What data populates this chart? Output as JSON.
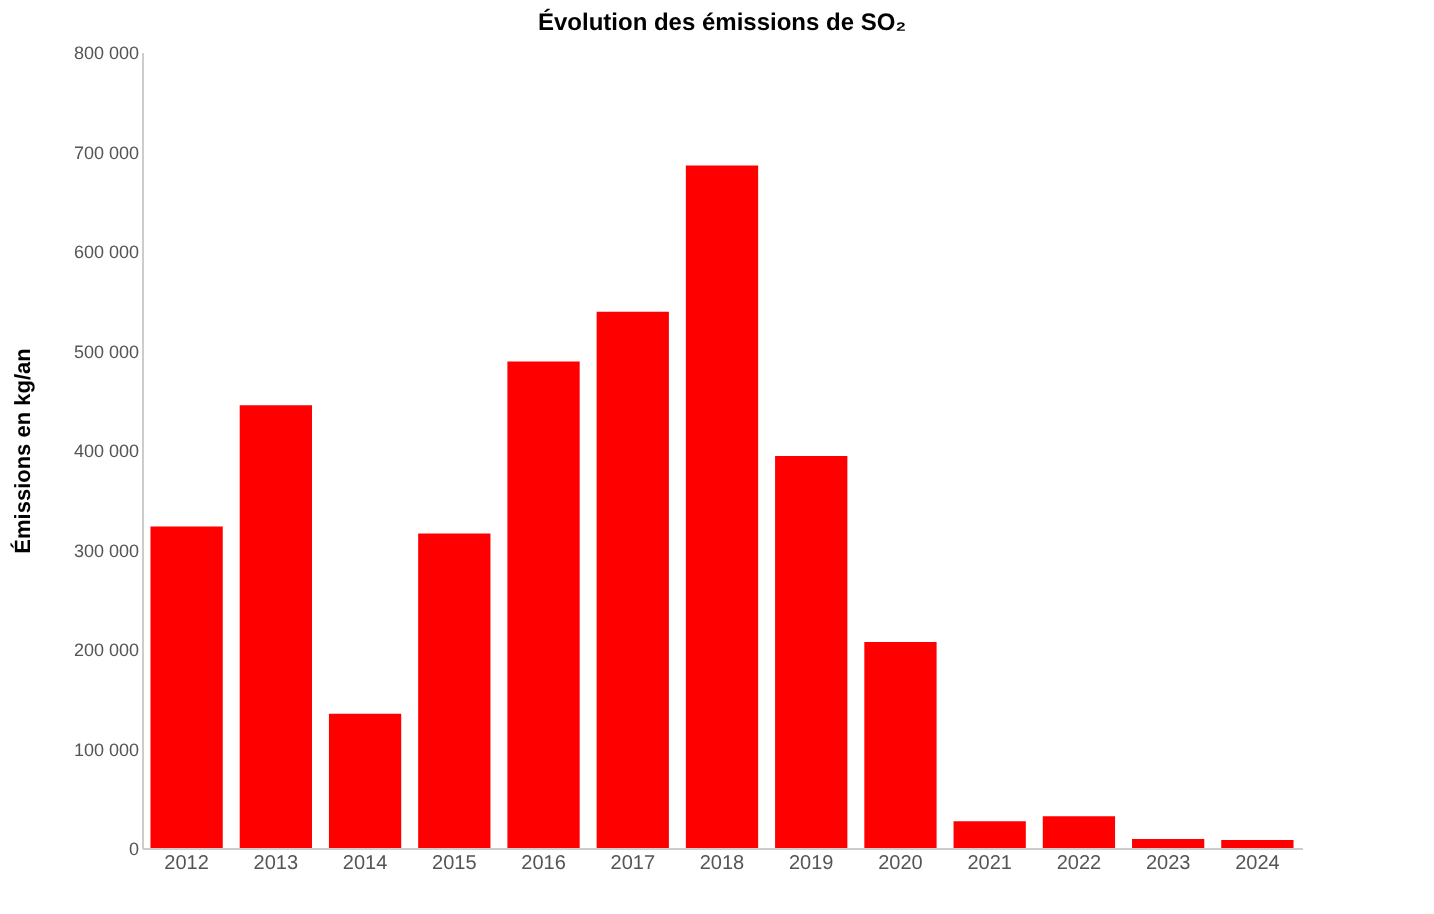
{
  "chart_data": {
    "type": "bar",
    "title": "Évolution des émissions de SO₂",
    "ylabel": "Émissions en kg/an",
    "categories": [
      "2012",
      "2013",
      "2014",
      "2015",
      "2016",
      "2017",
      "2018",
      "2019",
      "2020",
      "2021",
      "2022",
      "2023",
      "2024"
    ],
    "values": [
      323000,
      445000,
      135000,
      316000,
      489000,
      539000,
      686000,
      394000,
      207000,
      27000,
      32000,
      9000,
      8000
    ],
    "color": "#ff0000",
    "ylim": [
      0,
      800000
    ],
    "yticks": [
      {
        "value": 0,
        "label": "0"
      },
      {
        "value": 100000,
        "label": "100 000"
      },
      {
        "value": 200000,
        "label": "200 000"
      },
      {
        "value": 300000,
        "label": "300 000"
      },
      {
        "value": 400000,
        "label": "400 000"
      },
      {
        "value": 500000,
        "label": "500 000"
      },
      {
        "value": 600000,
        "label": "600 000"
      },
      {
        "value": 700000,
        "label": "700 000"
      },
      {
        "value": 800000,
        "label": "800 000"
      }
    ],
    "grid": false
  }
}
